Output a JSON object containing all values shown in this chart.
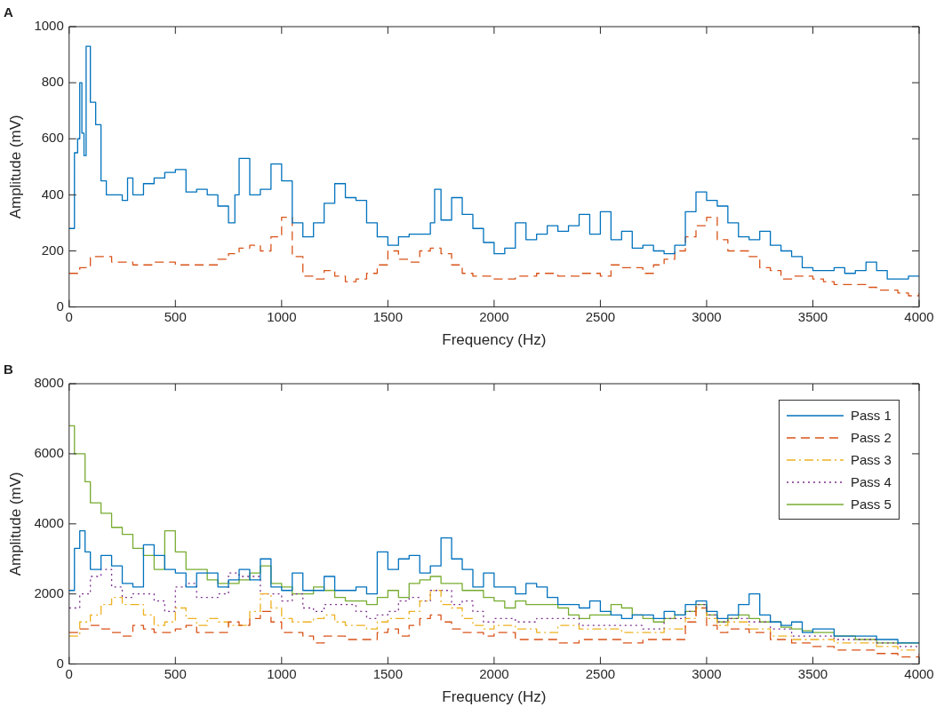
{
  "chart_data": [
    {
      "type": "step",
      "title": "A",
      "xlabel": "Frequency (Hz)",
      "ylabel": "Amplitude (mV)",
      "xlim": [
        0,
        4000
      ],
      "xticks": [
        0,
        500,
        1000,
        1500,
        2000,
        2500,
        3000,
        3500,
        4000
      ],
      "ylim": [
        0,
        1000
      ],
      "yticks": [
        0,
        200,
        400,
        600,
        800,
        1000
      ],
      "grid": false,
      "legend": false,
      "marker": "none",
      "series": [
        {
          "color": "#0072bd",
          "line_style": "solid",
          "x": [
            0,
            25,
            40,
            50,
            60,
            70,
            80,
            100,
            125,
            150,
            175,
            200,
            250,
            275,
            300,
            350,
            400,
            450,
            500,
            550,
            600,
            650,
            700,
            750,
            780,
            800,
            850,
            900,
            950,
            1000,
            1050,
            1100,
            1150,
            1200,
            1250,
            1300,
            1350,
            1400,
            1450,
            1500,
            1550,
            1600,
            1650,
            1700,
            1720,
            1750,
            1800,
            1850,
            1900,
            1950,
            2000,
            2050,
            2100,
            2150,
            2200,
            2250,
            2300,
            2350,
            2400,
            2450,
            2500,
            2550,
            2600,
            2650,
            2700,
            2750,
            2800,
            2850,
            2900,
            2950,
            3000,
            3050,
            3100,
            3150,
            3200,
            3250,
            3300,
            3350,
            3400,
            3450,
            3500,
            3550,
            3600,
            3650,
            3700,
            3750,
            3800,
            3850,
            3900,
            3950,
            4000
          ],
          "values": [
            280,
            550,
            600,
            800,
            620,
            540,
            930,
            730,
            650,
            450,
            400,
            400,
            380,
            460,
            400,
            440,
            460,
            480,
            490,
            410,
            420,
            400,
            360,
            300,
            400,
            530,
            400,
            420,
            510,
            450,
            300,
            250,
            300,
            370,
            440,
            390,
            380,
            300,
            250,
            220,
            250,
            260,
            260,
            300,
            420,
            310,
            390,
            330,
            280,
            230,
            190,
            210,
            300,
            240,
            260,
            290,
            270,
            290,
            330,
            260,
            340,
            240,
            270,
            210,
            220,
            200,
            190,
            220,
            340,
            410,
            380,
            360,
            300,
            250,
            240,
            270,
            220,
            200,
            180,
            140,
            130,
            130,
            140,
            120,
            130,
            160,
            130,
            100,
            100,
            110,
            110
          ]
        },
        {
          "color": "#d95319",
          "line_style": "dashed",
          "x": [
            0,
            50,
            100,
            200,
            300,
            400,
            500,
            600,
            700,
            750,
            800,
            850,
            900,
            950,
            1000,
            1050,
            1100,
            1150,
            1200,
            1250,
            1300,
            1350,
            1400,
            1450,
            1500,
            1550,
            1600,
            1650,
            1700,
            1750,
            1800,
            1850,
            1900,
            1950,
            2000,
            2100,
            2200,
            2300,
            2400,
            2500,
            2550,
            2600,
            2700,
            2750,
            2800,
            2850,
            2900,
            2950,
            3000,
            3050,
            3100,
            3150,
            3200,
            3250,
            3300,
            3350,
            3400,
            3450,
            3500,
            3550,
            3600,
            3700,
            3750,
            3800,
            3850,
            3900,
            3950,
            4000
          ],
          "values": [
            120,
            140,
            180,
            160,
            150,
            160,
            150,
            150,
            170,
            190,
            210,
            220,
            200,
            250,
            320,
            180,
            110,
            100,
            130,
            110,
            90,
            100,
            120,
            150,
            200,
            170,
            160,
            200,
            210,
            190,
            150,
            120,
            110,
            110,
            100,
            110,
            120,
            110,
            120,
            110,
            150,
            140,
            120,
            150,
            170,
            200,
            250,
            290,
            320,
            240,
            200,
            200,
            180,
            140,
            130,
            100,
            110,
            110,
            100,
            90,
            80,
            80,
            70,
            60,
            60,
            50,
            40,
            50
          ]
        }
      ]
    },
    {
      "type": "step",
      "title": "B",
      "xlabel": "Frequency (Hz)",
      "ylabel": "Amplitude (mV)",
      "xlim": [
        0,
        4000
      ],
      "xticks": [
        0,
        500,
        1000,
        1500,
        2000,
        2500,
        3000,
        3500,
        4000
      ],
      "ylim": [
        0,
        8000
      ],
      "yticks": [
        0,
        2000,
        4000,
        6000,
        8000
      ],
      "grid": false,
      "legend": "top right",
      "marker": "none",
      "series": [
        {
          "name": "Pass 1",
          "color": "#0072bd",
          "line_style": "solid",
          "x": [
            0,
            25,
            50,
            75,
            100,
            150,
            200,
            250,
            300,
            350,
            400,
            450,
            500,
            550,
            600,
            650,
            700,
            750,
            800,
            850,
            900,
            950,
            1000,
            1050,
            1100,
            1150,
            1200,
            1250,
            1300,
            1350,
            1400,
            1450,
            1500,
            1550,
            1600,
            1650,
            1700,
            1750,
            1800,
            1850,
            1900,
            1950,
            2000,
            2050,
            2100,
            2150,
            2200,
            2250,
            2300,
            2350,
            2400,
            2450,
            2500,
            2550,
            2600,
            2650,
            2700,
            2750,
            2800,
            2850,
            2900,
            2950,
            3000,
            3050,
            3100,
            3150,
            3200,
            3250,
            3300,
            3350,
            3400,
            3450,
            3500,
            3550,
            3600,
            3700,
            3800,
            3900,
            4000
          ],
          "values": [
            2100,
            3300,
            3800,
            3200,
            2700,
            3100,
            2800,
            2300,
            2200,
            3400,
            3100,
            2700,
            2600,
            2200,
            2600,
            2600,
            2200,
            2400,
            2700,
            2400,
            3000,
            2200,
            2100,
            2600,
            2100,
            2100,
            2500,
            2100,
            2100,
            2200,
            2000,
            3200,
            2700,
            3000,
            3100,
            2600,
            2800,
            3600,
            3000,
            2700,
            2200,
            2600,
            2200,
            2200,
            2000,
            2300,
            2200,
            1900,
            1700,
            1700,
            1600,
            1800,
            1500,
            1400,
            1300,
            1400,
            1400,
            1300,
            1500,
            1400,
            1700,
            1800,
            1500,
            1300,
            1400,
            1700,
            2000,
            1400,
            1200,
            1100,
            1200,
            900,
            1000,
            1000,
            800,
            800,
            700,
            600,
            600
          ]
        },
        {
          "name": "Pass 2",
          "color": "#d95319",
          "line_style": "dashed",
          "x": [
            0,
            50,
            100,
            150,
            200,
            250,
            300,
            350,
            400,
            500,
            550,
            600,
            700,
            750,
            800,
            850,
            900,
            950,
            1000,
            1100,
            1150,
            1200,
            1300,
            1400,
            1450,
            1500,
            1550,
            1600,
            1650,
            1700,
            1750,
            1800,
            1850,
            1900,
            1950,
            2000,
            2100,
            2200,
            2300,
            2400,
            2500,
            2600,
            2700,
            2800,
            2900,
            2950,
            3000,
            3050,
            3100,
            3200,
            3300,
            3400,
            3500,
            3600,
            3700,
            3800,
            3900,
            4000
          ],
          "values": [
            900,
            1000,
            1100,
            1000,
            900,
            800,
            1100,
            1000,
            900,
            1000,
            1100,
            900,
            900,
            1200,
            1100,
            1300,
            1500,
            1200,
            900,
            800,
            600,
            800,
            700,
            700,
            900,
            1000,
            800,
            1100,
            1300,
            1400,
            1200,
            1000,
            900,
            900,
            800,
            900,
            700,
            700,
            600,
            700,
            700,
            600,
            700,
            700,
            1200,
            1600,
            1100,
            900,
            1000,
            900,
            700,
            600,
            500,
            400,
            400,
            300,
            200,
            300
          ]
        },
        {
          "name": "Pass 3",
          "color": "#edb120",
          "line_style": "dashdot",
          "x": [
            0,
            50,
            100,
            150,
            200,
            250,
            300,
            350,
            400,
            450,
            500,
            550,
            600,
            650,
            700,
            750,
            800,
            850,
            900,
            950,
            1000,
            1050,
            1100,
            1150,
            1200,
            1250,
            1300,
            1350,
            1400,
            1450,
            1500,
            1550,
            1600,
            1650,
            1700,
            1750,
            1800,
            1850,
            1900,
            1950,
            2000,
            2100,
            2200,
            2300,
            2400,
            2500,
            2600,
            2700,
            2800,
            2900,
            2950,
            3000,
            3050,
            3100,
            3200,
            3300,
            3400,
            3500,
            3600,
            3700,
            3800,
            3900,
            4000
          ],
          "values": [
            800,
            1200,
            1400,
            1700,
            1900,
            1700,
            1700,
            1400,
            1100,
            1200,
            1600,
            1300,
            1100,
            1300,
            1200,
            1100,
            1100,
            1500,
            2000,
            1600,
            1300,
            1200,
            1200,
            1300,
            1400,
            1200,
            1100,
            1100,
            1000,
            1200,
            1300,
            1300,
            1500,
            1800,
            2100,
            1700,
            1600,
            1300,
            1100,
            1000,
            1100,
            1000,
            900,
            1100,
            1000,
            1000,
            900,
            900,
            1000,
            1300,
            1600,
            1300,
            1100,
            1200,
            1000,
            800,
            700,
            700,
            600,
            600,
            500,
            400,
            400
          ]
        },
        {
          "name": "Pass 4",
          "color": "#7e2f8e",
          "line_style": "dotted",
          "x": [
            0,
            50,
            100,
            150,
            200,
            250,
            300,
            400,
            450,
            500,
            550,
            600,
            700,
            750,
            800,
            850,
            900,
            950,
            1000,
            1050,
            1100,
            1150,
            1200,
            1300,
            1350,
            1400,
            1450,
            1500,
            1550,
            1600,
            1650,
            1700,
            1750,
            1800,
            1850,
            1900,
            1950,
            2000,
            2100,
            2200,
            2300,
            2400,
            2500,
            2600,
            2700,
            2800,
            2900,
            2950,
            3000,
            3050,
            3100,
            3200,
            3300,
            3400,
            3500,
            3600,
            3700,
            3800,
            3900,
            4000
          ],
          "values": [
            1600,
            2000,
            2500,
            2700,
            2200,
            1900,
            2000,
            1800,
            1500,
            2200,
            2300,
            1900,
            2000,
            2600,
            2500,
            2500,
            2000,
            2000,
            1800,
            2000,
            1600,
            1500,
            1700,
            1700,
            1500,
            1300,
            1400,
            1500,
            1800,
            1900,
            1800,
            2100,
            2100,
            1700,
            1800,
            1500,
            1200,
            1300,
            1200,
            1300,
            1300,
            1100,
            1100,
            1100,
            1000,
            1300,
            1500,
            1700,
            1400,
            1200,
            1300,
            1200,
            1000,
            800,
            800,
            700,
            700,
            600,
            500,
            500
          ]
        },
        {
          "name": "Pass 5",
          "color": "#77ac30",
          "line_style": "solid",
          "x": [
            0,
            25,
            75,
            100,
            150,
            200,
            250,
            300,
            350,
            400,
            450,
            500,
            550,
            600,
            650,
            700,
            750,
            800,
            850,
            900,
            950,
            1000,
            1050,
            1100,
            1150,
            1200,
            1250,
            1300,
            1350,
            1400,
            1450,
            1500,
            1550,
            1600,
            1650,
            1700,
            1750,
            1800,
            1850,
            1900,
            1950,
            2000,
            2050,
            2100,
            2150,
            2200,
            2250,
            2300,
            2350,
            2400,
            2450,
            2500,
            2550,
            2600,
            2650,
            2700,
            2750,
            2800,
            2850,
            2900,
            2950,
            3000,
            3050,
            3100,
            3150,
            3200,
            3250,
            3300,
            3350,
            3400,
            3450,
            3500,
            3600,
            3700,
            3800,
            3900,
            4000
          ],
          "values": [
            6800,
            6000,
            5200,
            4600,
            4300,
            3900,
            3700,
            3300,
            3100,
            2700,
            3800,
            3200,
            2700,
            2700,
            2400,
            2300,
            2300,
            2400,
            2600,
            2800,
            2300,
            2200,
            2000,
            2000,
            2200,
            2100,
            1900,
            1800,
            1800,
            1700,
            1900,
            2100,
            1900,
            2300,
            2400,
            2500,
            2300,
            2300,
            2100,
            2100,
            1900,
            1800,
            1600,
            1800,
            1700,
            1700,
            1700,
            1600,
            1400,
            1300,
            1400,
            1400,
            1700,
            1600,
            1400,
            1300,
            1200,
            1300,
            1400,
            1500,
            1700,
            1400,
            1200,
            1300,
            1400,
            1300,
            1200,
            1200,
            1050,
            1000,
            950,
            900,
            800,
            700,
            600,
            600,
            600
          ]
        }
      ]
    }
  ]
}
